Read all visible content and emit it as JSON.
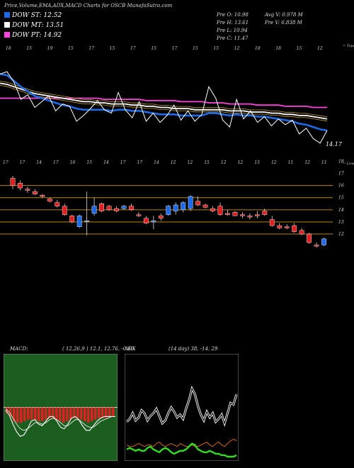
{
  "header": {
    "title": "Price,Volume,EMA,ADX,MACD Charts for OSCB MunafaSutra.com",
    "legend": [
      {
        "label": "DOW ST: 12.52",
        "color": "#1e6ae8"
      },
      {
        "label": "DOW MT: 13.51",
        "color": "#ffffff"
      },
      {
        "label": "DOW PT: 14.92",
        "color": "#ff44dd"
      }
    ],
    "stats_left": [
      "Pre   O: 10.98",
      "Pre   H: 13.61",
      "Pre   L: 10.94",
      "Pre   C: 11.47"
    ],
    "stats_right": [
      "Avg V: 0.978  M",
      "Pre   V: 6.838  M"
    ]
  },
  "colors": {
    "up": "#1e6ae8",
    "down": "#e02020",
    "ema_st": "#1e6ae8",
    "ema_mt": "#ffffff",
    "ema_pt": "#ff44dd",
    "level_line": "#b8860b"
  },
  "chart_data": [
    {
      "type": "line",
      "name": "price-ema-panel",
      "corner_label": "= Topa",
      "top_tick_labels": [
        "18",
        "15",
        "19",
        "15",
        "17",
        "15",
        "17",
        "15",
        "17",
        "15",
        "15",
        "12",
        "18",
        "18",
        "15",
        "12"
      ],
      "last_value_label": "14.17",
      "series": [
        {
          "name": "price",
          "color": "#ffffff",
          "values": [
            17.0,
            17.2,
            16.3,
            14.8,
            15.2,
            14.1,
            14.6,
            15.1,
            13.8,
            14.4,
            14.2,
            12.9,
            13.4,
            14.0,
            14.7,
            13.9,
            13.6,
            15.4,
            13.9,
            13.2,
            14.6,
            12.9,
            13.6,
            12.8,
            13.4,
            14.3,
            13.0,
            13.8,
            12.9,
            13.5,
            15.9,
            14.9,
            13.0,
            12.4,
            14.8,
            13.1,
            13.8,
            12.8,
            13.3,
            12.5,
            13.1,
            12.6,
            13.0,
            11.8,
            12.3,
            11.4,
            11.0,
            12.1
          ]
        },
        {
          "name": "DOW ST",
          "color": "#1e6ae8",
          "values": [
            17.0,
            16.9,
            16.4,
            15.9,
            15.5,
            15.1,
            14.9,
            14.7,
            14.5,
            14.3,
            14.2,
            14.0,
            13.9,
            13.9,
            13.9,
            13.9,
            13.8,
            13.9,
            13.9,
            13.8,
            13.8,
            13.7,
            13.6,
            13.5,
            13.5,
            13.5,
            13.4,
            13.4,
            13.4,
            13.4,
            13.6,
            13.6,
            13.5,
            13.4,
            13.5,
            13.4,
            13.4,
            13.3,
            13.3,
            13.2,
            13.1,
            13.0,
            12.9,
            12.7,
            12.6,
            12.4,
            12.2,
            12.1
          ]
        },
        {
          "name": "DOW MT",
          "color": "#ffffff",
          "values": [
            16.2,
            16.1,
            15.9,
            15.7,
            15.5,
            15.3,
            15.2,
            15.1,
            15.0,
            14.9,
            14.8,
            14.7,
            14.6,
            14.6,
            14.5,
            14.5,
            14.4,
            14.4,
            14.4,
            14.3,
            14.3,
            14.2,
            14.2,
            14.1,
            14.1,
            14.0,
            14.0,
            14.0,
            13.9,
            13.9,
            13.9,
            13.9,
            13.9,
            13.8,
            13.8,
            13.8,
            13.7,
            13.7,
            13.7,
            13.6,
            13.6,
            13.5,
            13.5,
            13.4,
            13.4,
            13.3,
            13.2,
            13.1
          ]
        },
        {
          "name": "DOW PT",
          "color": "#ff44dd",
          "values": [
            14.9,
            14.9,
            14.9,
            14.9,
            14.9,
            14.9,
            14.9,
            14.9,
            14.9,
            14.9,
            14.9,
            14.9,
            14.9,
            14.9,
            14.9,
            14.8,
            14.8,
            14.8,
            14.8,
            14.8,
            14.8,
            14.7,
            14.7,
            14.7,
            14.7,
            14.7,
            14.6,
            14.6,
            14.6,
            14.6,
            14.5,
            14.5,
            14.5,
            14.4,
            14.4,
            14.4,
            14.4,
            14.3,
            14.3,
            14.3,
            14.3,
            14.2,
            14.2,
            14.2,
            14.2,
            14.1,
            14.1,
            14.1
          ]
        }
      ],
      "ylim": [
        10.5,
        18.5
      ]
    },
    {
      "type": "candlestick",
      "name": "candle-panel",
      "corner_label": "= Lowes",
      "top_tick_labels": [
        "17",
        "17",
        "14",
        "17",
        "16",
        "15",
        "14",
        "17",
        "17",
        "14",
        "12",
        "12",
        "15",
        "12",
        "12",
        "15",
        "12",
        "11",
        "12",
        "11"
      ],
      "y_ticks": [
        18,
        17,
        16,
        15,
        14,
        13,
        12
      ],
      "level_lines": [
        16,
        15,
        14,
        13,
        12
      ],
      "ylim": [
        10.6,
        18.2
      ],
      "candles": [
        {
          "o": 16.6,
          "h": 16.8,
          "l": 15.7,
          "c": 16.0
        },
        {
          "o": 16.2,
          "h": 16.4,
          "l": 15.6,
          "c": 15.8
        },
        {
          "o": 15.7,
          "h": 15.9,
          "l": 15.4,
          "c": 15.6
        },
        {
          "o": 15.5,
          "h": 15.7,
          "l": 15.2,
          "c": 15.3
        },
        {
          "o": 15.2,
          "h": 15.3,
          "l": 15.0,
          "c": 15.1
        },
        {
          "o": 14.9,
          "h": 15.0,
          "l": 14.6,
          "c": 14.7
        },
        {
          "o": 14.6,
          "h": 14.8,
          "l": 14.2,
          "c": 14.3
        },
        {
          "o": 14.3,
          "h": 14.5,
          "l": 13.5,
          "c": 13.6
        },
        {
          "o": 13.5,
          "h": 13.6,
          "l": 12.9,
          "c": 13.0
        },
        {
          "o": 12.6,
          "h": 13.6,
          "l": 12.5,
          "c": 13.5
        },
        {
          "o": 13.1,
          "h": 15.5,
          "l": 11.9,
          "c": 13.1
        },
        {
          "o": 13.7,
          "h": 15.0,
          "l": 13.5,
          "c": 14.3
        },
        {
          "o": 14.5,
          "h": 14.6,
          "l": 13.8,
          "c": 13.9
        },
        {
          "o": 14.3,
          "h": 14.4,
          "l": 13.9,
          "c": 14.0
        },
        {
          "o": 14.1,
          "h": 14.3,
          "l": 13.8,
          "c": 13.9
        },
        {
          "o": 14.1,
          "h": 14.4,
          "l": 14.0,
          "c": 14.3
        },
        {
          "o": 14.3,
          "h": 14.5,
          "l": 13.9,
          "c": 14.0
        },
        {
          "o": 13.6,
          "h": 13.8,
          "l": 13.4,
          "c": 13.5
        },
        {
          "o": 13.3,
          "h": 13.5,
          "l": 12.8,
          "c": 12.9
        },
        {
          "o": 13.0,
          "h": 13.5,
          "l": 12.4,
          "c": 13.1
        },
        {
          "o": 13.5,
          "h": 13.7,
          "l": 13.1,
          "c": 13.3
        },
        {
          "o": 13.6,
          "h": 14.4,
          "l": 13.5,
          "c": 14.3
        },
        {
          "o": 13.9,
          "h": 14.6,
          "l": 13.6,
          "c": 14.4
        },
        {
          "o": 14.0,
          "h": 14.7,
          "l": 13.8,
          "c": 14.6
        },
        {
          "o": 14.1,
          "h": 15.2,
          "l": 13.9,
          "c": 15.1
        },
        {
          "o": 14.7,
          "h": 15.1,
          "l": 14.3,
          "c": 14.4
        },
        {
          "o": 14.4,
          "h": 14.5,
          "l": 14.1,
          "c": 14.2
        },
        {
          "o": 14.1,
          "h": 14.3,
          "l": 13.8,
          "c": 13.9
        },
        {
          "o": 14.3,
          "h": 14.6,
          "l": 13.5,
          "c": 13.6
        },
        {
          "o": 13.7,
          "h": 14.0,
          "l": 13.5,
          "c": 13.6
        },
        {
          "o": 13.8,
          "h": 13.9,
          "l": 13.5,
          "c": 13.5
        },
        {
          "o": 13.6,
          "h": 13.8,
          "l": 13.3,
          "c": 13.5
        },
        {
          "o": 13.5,
          "h": 13.7,
          "l": 13.2,
          "c": 13.4
        },
        {
          "o": 13.6,
          "h": 13.9,
          "l": 13.3,
          "c": 13.5
        },
        {
          "o": 13.9,
          "h": 14.1,
          "l": 13.5,
          "c": 13.6
        },
        {
          "o": 13.2,
          "h": 13.5,
          "l": 12.6,
          "c": 12.7
        },
        {
          "o": 12.7,
          "h": 12.9,
          "l": 12.4,
          "c": 12.5
        },
        {
          "o": 12.6,
          "h": 12.8,
          "l": 12.4,
          "c": 12.5
        },
        {
          "o": 12.7,
          "h": 12.9,
          "l": 12.1,
          "c": 12.2
        },
        {
          "o": 12.3,
          "h": 12.5,
          "l": 11.9,
          "c": 12.0
        },
        {
          "o": 12.0,
          "h": 12.1,
          "l": 11.2,
          "c": 11.3
        },
        {
          "o": 11.1,
          "h": 11.3,
          "l": 10.9,
          "c": 11.0
        },
        {
          "o": 11.1,
          "h": 11.7,
          "l": 11.0,
          "c": 11.6
        }
      ]
    },
    {
      "type": "line",
      "name": "macd-panel",
      "title": "MACD:",
      "params": "( 12,26,9 ) 12.1,  12.76,  -0.66",
      "series": [
        {
          "name": "macd",
          "color": "#ffffff",
          "values": [
            -0.2,
            -0.5,
            -1.1,
            -1.6,
            -1.9,
            -1.8,
            -1.4,
            -0.9,
            -0.8,
            -1.1,
            -1.2,
            -0.9,
            -0.6,
            -0.6,
            -0.9,
            -1.3,
            -1.4,
            -1.1,
            -0.7,
            -0.6,
            -0.8,
            -1.2,
            -1.5,
            -1.5,
            -1.2,
            -0.9,
            -0.7,
            -0.6,
            -0.6,
            -0.6,
            -0.6
          ]
        },
        {
          "name": "signal",
          "color": "#ffffff",
          "values": [
            -0.1,
            -0.3,
            -0.7,
            -1.1,
            -1.4,
            -1.5,
            -1.4,
            -1.2,
            -1.0,
            -1.0,
            -1.1,
            -1.0,
            -0.8,
            -0.7,
            -0.8,
            -1.0,
            -1.2,
            -1.2,
            -1.0,
            -0.8,
            -0.8,
            -1.0,
            -1.2,
            -1.3,
            -1.3,
            -1.1,
            -0.9,
            -0.8,
            -0.7,
            -0.6,
            -0.6
          ]
        },
        {
          "name": "histogram",
          "color": "#e02020",
          "values": [
            -0.4,
            -0.6,
            -0.9,
            -1.0,
            -1.0,
            -0.9,
            -0.8,
            -0.8,
            -0.8,
            -0.9,
            -0.9,
            -0.8,
            -0.7,
            -0.7,
            -0.8,
            -0.9,
            -1.0,
            -0.9,
            -0.8,
            -0.7,
            -0.7,
            -0.8,
            -0.9,
            -1.0,
            -0.9,
            -0.8,
            -0.7,
            -0.7,
            -0.7,
            -0.6,
            -0.6
          ]
        }
      ],
      "ylim": [
        -3.5,
        3.5
      ]
    },
    {
      "type": "line",
      "name": "adx-panel",
      "title": "ADX",
      "params": "(14  day) 38,  -14,  29",
      "series": [
        {
          "name": "adx",
          "color": "#ffffff",
          "values": [
            25,
            27,
            31,
            26,
            28,
            33,
            31,
            26,
            29,
            31,
            34,
            29,
            24,
            26,
            31,
            35,
            32,
            28,
            30,
            27,
            34,
            40,
            48,
            44,
            36,
            30,
            26,
            32,
            28,
            31,
            25,
            27,
            30,
            24,
            31,
            38,
            37,
            44
          ]
        },
        {
          "name": "+di",
          "color": "#33dd22",
          "values": [
            6,
            7,
            6,
            5,
            6,
            5,
            5,
            7,
            8,
            6,
            5,
            4,
            6,
            7,
            6,
            4,
            3,
            4,
            5,
            5,
            6,
            8,
            10,
            9,
            6,
            5,
            4,
            4,
            5,
            4,
            3,
            3,
            2,
            2,
            1,
            1,
            1,
            2
          ]
        },
        {
          "name": "-di",
          "color": "#d2691e",
          "values": [
            9,
            8,
            8,
            9,
            10,
            9,
            8,
            9,
            9,
            8,
            10,
            11,
            9,
            8,
            9,
            10,
            9,
            8,
            10,
            9,
            8,
            8,
            9,
            8,
            8,
            9,
            10,
            11,
            9,
            8,
            10,
            11,
            9,
            8,
            10,
            12,
            13,
            12
          ]
        }
      ],
      "ylim": [
        0,
        70
      ]
    }
  ]
}
